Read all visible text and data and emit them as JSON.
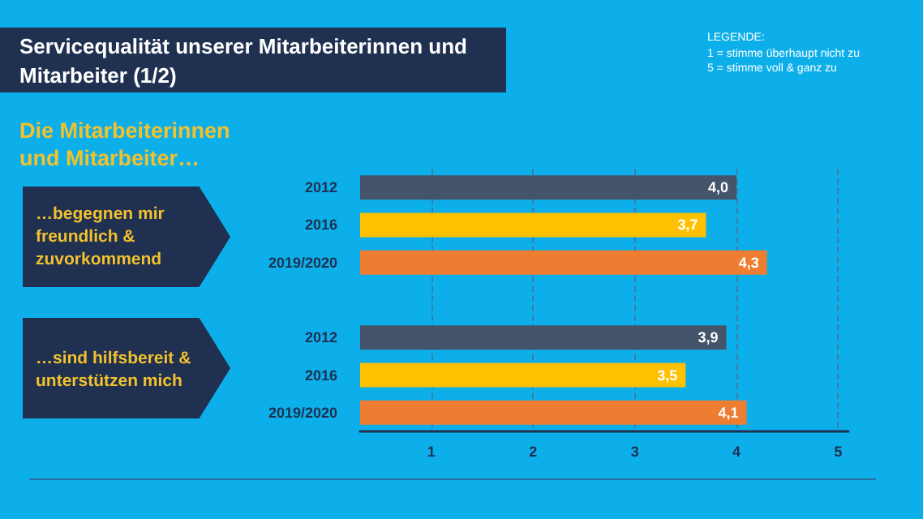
{
  "chart_data": {
    "type": "bar",
    "orientation": "horizontal",
    "title": "Servicequalität unserer Mitarbeiterinnen und Mitarbeiter (1/2)",
    "subtitle": "Die Mitarbeiterinnen und Mitarbeiter…",
    "annotations": [
      "LEGENDE:\n1 = stimme überhaupt nicht zu\n5 = stimme voll & ganz zu",
      "…begegnen mir freundlich & zuvorkommend",
      "…sind hilfsbereit & unterstützen mich"
    ],
    "categories": [
      "2012",
      "2016",
      "2019/2020",
      null,
      "2012",
      "2016",
      "2019/2020"
    ],
    "series": [
      {
        "values": [
          4.0,
          3.7,
          4.3,
          null,
          3.9,
          3.5,
          4.1
        ],
        "colors": [
          "#44546a",
          "#ffc000",
          "#ed7d31",
          null,
          "#44546a",
          "#ffc000",
          "#ed7d31"
        ],
        "value_labels": [
          "4,0",
          "3,7",
          "4,3",
          null,
          "3,9",
          "3,5",
          "4,1"
        ]
      }
    ],
    "xlim": [
      0.3,
      5.1
    ],
    "xticks": [
      1,
      2,
      3,
      4,
      5
    ],
    "grid": "x"
  }
}
